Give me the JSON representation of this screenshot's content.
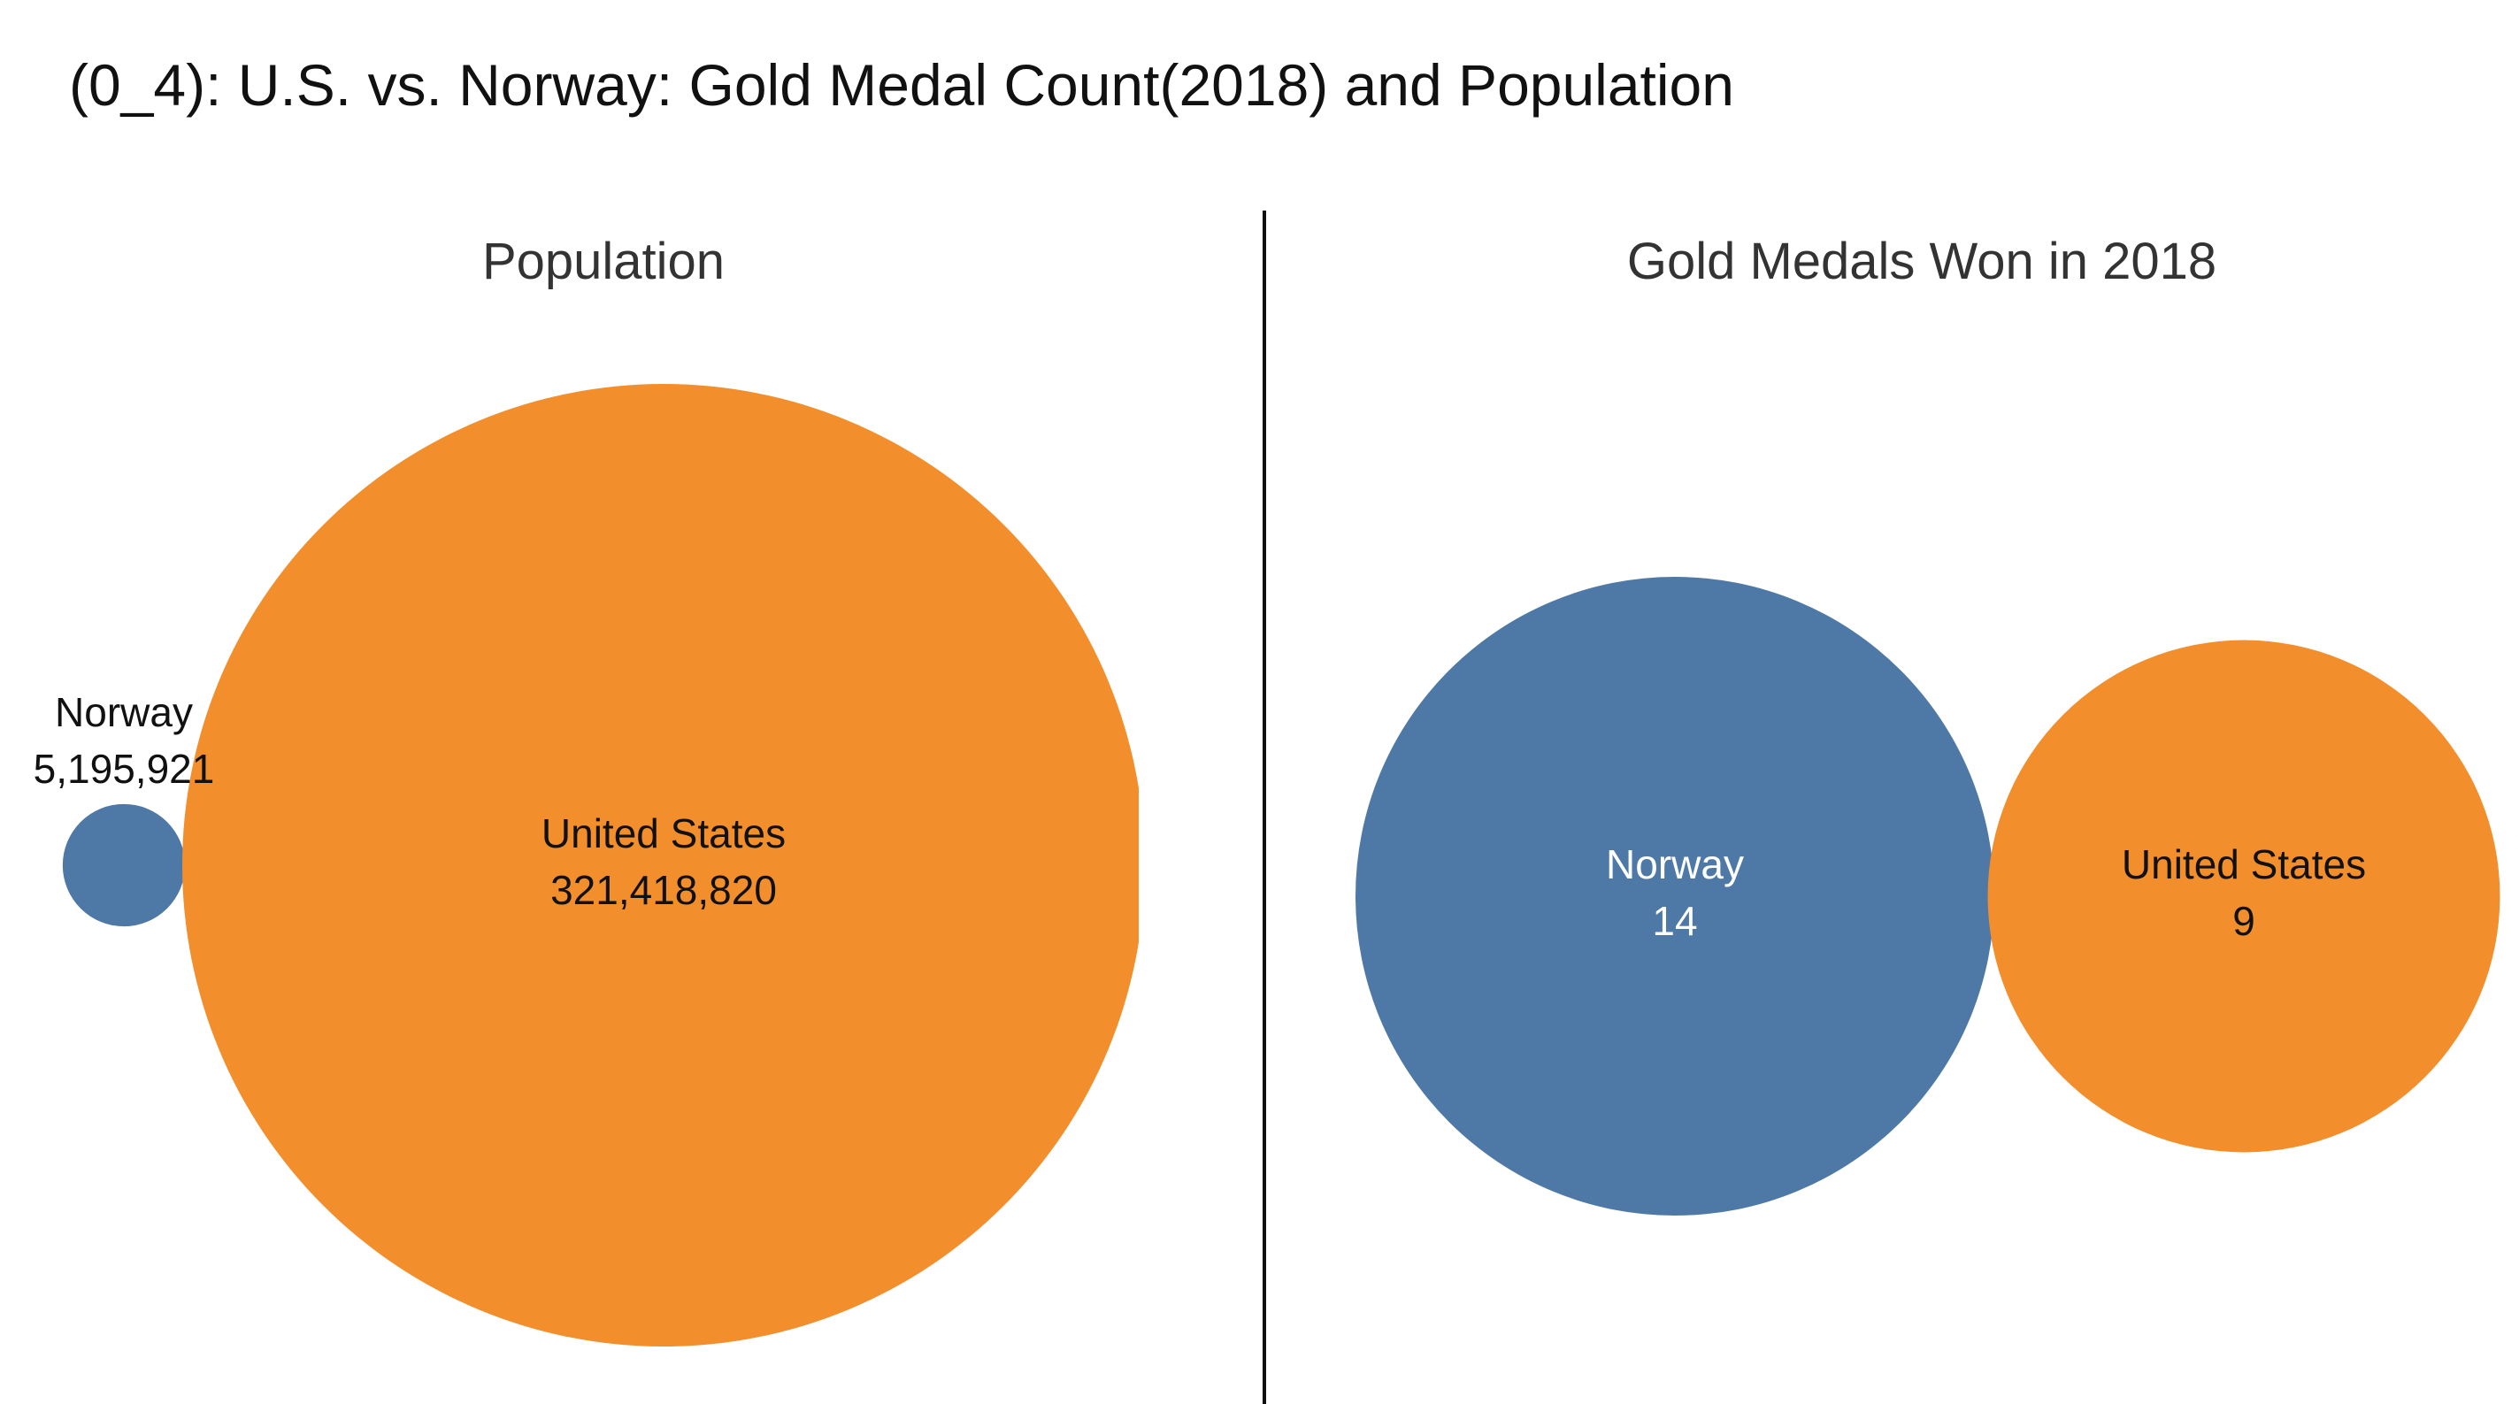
{
  "title": "(0_4): U.S. vs. Norway: Gold Medal Count(2018) and Population",
  "colors": {
    "norway": "#4e79a7",
    "united_states": "#f28e2b"
  },
  "chart_data": [
    {
      "type": "bubble",
      "title": "Population",
      "series": [
        {
          "name": "Norway",
          "value": 5195921,
          "value_label": "5,195,921",
          "color": "#4e79a7"
        },
        {
          "name": "United States",
          "value": 321418820,
          "value_label": "321,418,820",
          "color": "#f28e2b"
        }
      ]
    },
    {
      "type": "bubble",
      "title": "Gold Medals Won in 2018",
      "series": [
        {
          "name": "Norway",
          "value": 14,
          "value_label": "14",
          "color": "#4e79a7"
        },
        {
          "name": "United States",
          "value": 9,
          "value_label": "9",
          "color": "#f28e2b"
        }
      ]
    }
  ]
}
